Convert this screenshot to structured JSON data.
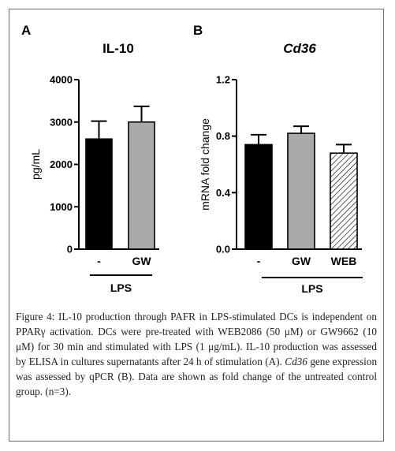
{
  "chart_data": [
    {
      "type": "bar",
      "panel_letter": "A",
      "title": "IL-10",
      "title_italic": false,
      "ylabel": "pg/mL",
      "ylim": [
        0,
        4000
      ],
      "yticks": [
        0,
        1000,
        2000,
        3000,
        4000
      ],
      "yticklabels": [
        "0",
        "1000",
        "2000",
        "3000",
        "4000"
      ],
      "categories": [
        "-",
        "GW"
      ],
      "values": [
        2600,
        3000
      ],
      "errors": [
        420,
        370
      ],
      "bar_styles": [
        "black",
        "gray"
      ],
      "group_label": "LPS",
      "grid": false
    },
    {
      "type": "bar",
      "panel_letter": "B",
      "title": "Cd36",
      "title_italic": true,
      "ylabel": "mRNA fold change",
      "ylim": [
        0,
        1.2
      ],
      "yticks": [
        0,
        0.4,
        0.8,
        1.2
      ],
      "yticklabels": [
        "0.0",
        "0.4",
        "0.8",
        "1.2"
      ],
      "categories": [
        "-",
        "GW",
        "WEB"
      ],
      "values": [
        0.74,
        0.82,
        0.68
      ],
      "errors": [
        0.07,
        0.05,
        0.06
      ],
      "bar_styles": [
        "black",
        "gray",
        "hatched"
      ],
      "group_label": "LPS",
      "grid": false
    }
  ],
  "colors": {
    "black_bar": "#000000",
    "gray_bar": "#a9a9a9",
    "hatch": "#000000",
    "caption_text": "#222222",
    "frame": "#6d6d6d"
  },
  "caption": {
    "lead": "Figure 4: IL-10 production through PAFR in LPS-stimulated DCs is independent on PPARγ activation.",
    "body_1": "DCs were pre-treated with WEB2086 (50 μM) or GW9662 (10 μM) for 30 min and stimulated with LPS (1 μg/mL). IL-10 production was assessed by ELISA in cultures supernatants after 24 h of stimulation (A).",
    "gene": "Cd36",
    "body_2": "gene expression was assessed by qPCR (B). Data are shown as fold change of the untreated control group. (n=3)."
  }
}
